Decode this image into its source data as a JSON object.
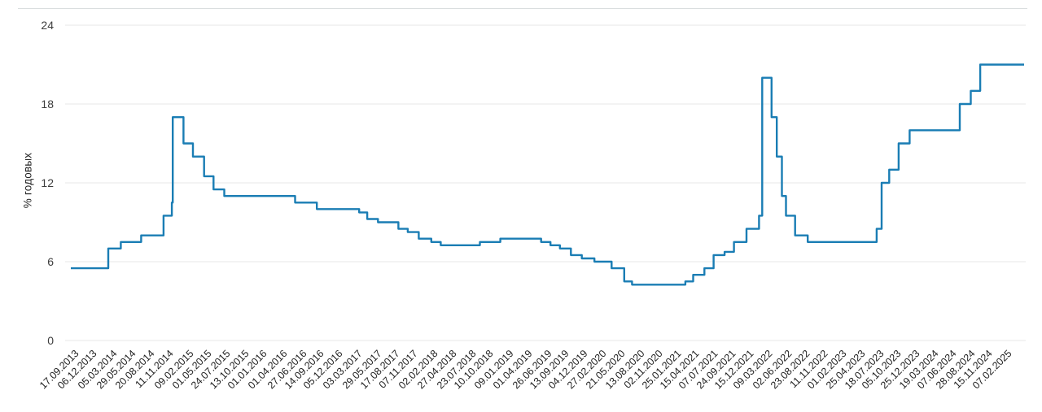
{
  "chart_data": {
    "type": "line",
    "step": true,
    "title": "",
    "xlabel": "",
    "ylabel": "% годовых",
    "yticks": [
      0,
      6,
      12,
      18,
      24
    ],
    "ylim": [
      0,
      24
    ],
    "grid": true,
    "legend": false,
    "line_color": "#1a7db4",
    "gridline_color": "#e7e7e7",
    "x_domain": [
      "2013-09-17",
      "2025-05-12"
    ],
    "x_tick_labels": [
      "17.09.2013",
      "06.12.2013",
      "05.03.2014",
      "29.05.2014",
      "20.08.2014",
      "11.11.2014",
      "09.02.2015",
      "01.05.2015",
      "24.07.2015",
      "13.10.2015",
      "01.01.2016",
      "01.04.2016",
      "27.06.2016",
      "14.09.2016",
      "05.12.2016",
      "03.03.2017",
      "29.05.2017",
      "17.08.2017",
      "07.11.2017",
      "02.02.2018",
      "27.04.2018",
      "23.07.2018",
      "10.10.2018",
      "09.01.2019",
      "01.04.2019",
      "26.06.2019",
      "13.09.2019",
      "04.12.2019",
      "27.02.2020",
      "21.05.2020",
      "13.08.2020",
      "02.11.2020",
      "25.01.2021",
      "15.04.2021",
      "07.07.2021",
      "24.09.2021",
      "15.12.2021",
      "09.03.2022",
      "02.06.2022",
      "23.08.2022",
      "11.11.2022",
      "01.02.2023",
      "25.04.2023",
      "18.07.2023",
      "05.10.2023",
      "25.12.2023",
      "19.03.2024",
      "07.06.2024",
      "28.08.2024",
      "15.11.2024",
      "07.02.2025"
    ],
    "points": [
      [
        "2013-09-17",
        5.5
      ],
      [
        "2014-03-03",
        7.0
      ],
      [
        "2014-04-28",
        7.5
      ],
      [
        "2014-07-28",
        8.0
      ],
      [
        "2014-11-05",
        9.5
      ],
      [
        "2014-12-12",
        10.5
      ],
      [
        "2014-12-16",
        17.0
      ],
      [
        "2015-02-02",
        15.0
      ],
      [
        "2015-03-16",
        14.0
      ],
      [
        "2015-05-05",
        12.5
      ],
      [
        "2015-06-16",
        11.5
      ],
      [
        "2015-08-03",
        11.0
      ],
      [
        "2016-06-14",
        10.5
      ],
      [
        "2016-09-19",
        10.0
      ],
      [
        "2017-03-27",
        9.75
      ],
      [
        "2017-05-02",
        9.25
      ],
      [
        "2017-06-19",
        9.0
      ],
      [
        "2017-09-18",
        8.5
      ],
      [
        "2017-10-30",
        8.25
      ],
      [
        "2017-12-18",
        7.75
      ],
      [
        "2018-02-12",
        7.5
      ],
      [
        "2018-03-26",
        7.25
      ],
      [
        "2018-09-17",
        7.5
      ],
      [
        "2018-12-17",
        7.75
      ],
      [
        "2019-06-17",
        7.5
      ],
      [
        "2019-07-29",
        7.25
      ],
      [
        "2019-09-09",
        7.0
      ],
      [
        "2019-10-28",
        6.5
      ],
      [
        "2019-12-16",
        6.25
      ],
      [
        "2020-02-10",
        6.0
      ],
      [
        "2020-04-27",
        5.5
      ],
      [
        "2020-06-22",
        4.5
      ],
      [
        "2020-07-27",
        4.25
      ],
      [
        "2021-03-22",
        4.5
      ],
      [
        "2021-04-26",
        5.0
      ],
      [
        "2021-06-15",
        5.5
      ],
      [
        "2021-07-26",
        6.5
      ],
      [
        "2021-09-13",
        6.75
      ],
      [
        "2021-10-25",
        7.5
      ],
      [
        "2021-12-20",
        8.5
      ],
      [
        "2022-02-14",
        9.5
      ],
      [
        "2022-02-28",
        20.0
      ],
      [
        "2022-04-11",
        17.0
      ],
      [
        "2022-05-04",
        14.0
      ],
      [
        "2022-05-27",
        11.0
      ],
      [
        "2022-06-14",
        9.5
      ],
      [
        "2022-07-25",
        8.0
      ],
      [
        "2022-09-19",
        7.5
      ],
      [
        "2023-07-24",
        8.5
      ],
      [
        "2023-08-15",
        12.0
      ],
      [
        "2023-09-18",
        13.0
      ],
      [
        "2023-10-30",
        15.0
      ],
      [
        "2023-12-18",
        16.0
      ],
      [
        "2024-07-29",
        18.0
      ],
      [
        "2024-09-16",
        19.0
      ],
      [
        "2024-10-28",
        21.0
      ]
    ],
    "last_value": 21.0
  }
}
